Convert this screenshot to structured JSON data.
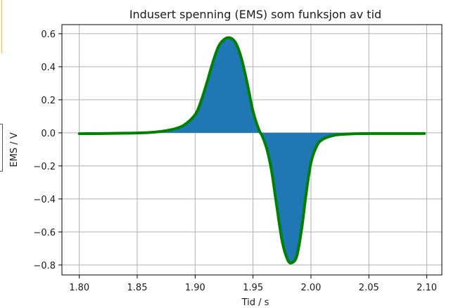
{
  "chart_data": {
    "type": "area",
    "title": "Indusert spenning (EMS) som funksjon av tid",
    "xlabel": "Tid / s",
    "ylabel": "EMS / V",
    "xlim": [
      1.785,
      2.113
    ],
    "ylim": [
      -0.86,
      0.655
    ],
    "xticks": [
      1.8,
      1.85,
      1.9,
      1.95,
      2.0,
      2.05,
      2.1
    ],
    "xtick_labels": [
      "1.80",
      "1.85",
      "1.90",
      "1.95",
      "2.00",
      "2.05",
      "2.10"
    ],
    "yticks": [
      0.6,
      0.4,
      0.2,
      0.0,
      -0.2,
      -0.4,
      -0.6,
      -0.8
    ],
    "ytick_labels": [
      "0.6",
      "0.4",
      "0.2",
      "0.0",
      "−0.2",
      "−0.4",
      "−0.6",
      "−0.8"
    ],
    "grid": true,
    "series": [
      {
        "line_color": "#008000",
        "fill_color": "#1f77b4",
        "x": [
          1.8,
          1.82,
          1.84,
          1.86,
          1.87,
          1.88,
          1.89,
          1.9,
          1.905,
          1.91,
          1.915,
          1.92,
          1.925,
          1.93,
          1.935,
          1.94,
          1.945,
          1.95,
          1.955,
          1.958,
          1.962,
          1.966,
          1.97,
          1.975,
          1.98,
          1.984,
          1.988,
          1.992,
          1.996,
          2.0,
          2.005,
          2.01,
          2.02,
          2.03,
          2.04,
          2.06,
          2.08,
          2.098
        ],
        "y": [
          -0.005,
          -0.004,
          -0.002,
          0.002,
          0.008,
          0.02,
          0.045,
          0.11,
          0.19,
          0.3,
          0.42,
          0.52,
          0.565,
          0.575,
          0.545,
          0.45,
          0.3,
          0.13,
          0.02,
          -0.02,
          -0.1,
          -0.23,
          -0.42,
          -0.65,
          -0.77,
          -0.785,
          -0.74,
          -0.58,
          -0.36,
          -0.18,
          -0.08,
          -0.04,
          -0.015,
          -0.008,
          -0.005,
          -0.004,
          -0.004,
          -0.004
        ]
      }
    ]
  }
}
